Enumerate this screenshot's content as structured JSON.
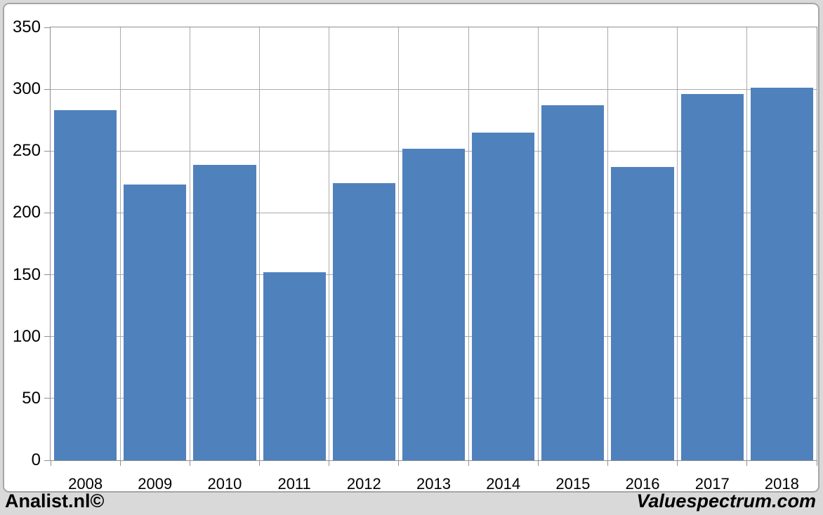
{
  "chart_data": {
    "type": "bar",
    "categories": [
      "2008",
      "2009",
      "2010",
      "2011",
      "2012",
      "2013",
      "2014",
      "2015",
      "2016",
      "2017",
      "2018"
    ],
    "values": [
      283,
      223,
      239,
      152,
      224,
      252,
      265,
      287,
      237,
      296,
      301
    ],
    "title": "",
    "xlabel": "",
    "ylabel": "",
    "ylim": [
      0,
      350
    ],
    "yticks": [
      0,
      50,
      100,
      150,
      200,
      250,
      300,
      350
    ],
    "grid": true,
    "legend": false,
    "bar_color": "#4f81bd"
  },
  "footer": {
    "left": "Analist.nl©",
    "right": "Valuespectrum.com"
  },
  "colors": {
    "background": "#d9d9d9",
    "plot_background": "#ffffff",
    "gridline": "#ababab",
    "axis": "#8f8f8f",
    "frame_border": "#a6a6a6",
    "bar": "#4f81bd",
    "text": "#000000"
  }
}
